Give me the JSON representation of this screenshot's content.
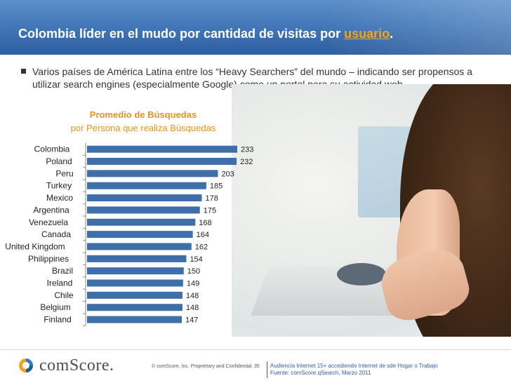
{
  "slide": {
    "title_main": "Colombia líder en el mudo por cantidad de visitas por ",
    "title_highlight": "usuario",
    "title_end": ".",
    "bullet": "Varios países de América Latina entre los “Heavy Searchers” del mundo – indicando ser propensos a utilizar search engines (especialmente Google) como un portal para su actividad web"
  },
  "colors": {
    "header": "#3f74b5",
    "accent": "#f5a31b",
    "bar": "#3e6fa8",
    "chart_title": "#e8921c"
  },
  "chart_data": {
    "type": "bar",
    "orientation": "horizontal",
    "title": "Promedio de Búsquedas",
    "subtitle": "por Persona que realiza Búsquedas",
    "categories": [
      "Colombia",
      "Poland",
      "Peru",
      "Turkey",
      "Mexico",
      "Argentina",
      "Venezuela",
      "Canada",
      "United Kingdom",
      "Philippines",
      "Brazil",
      "Ireland",
      "Chile",
      "Belgium",
      "Finland"
    ],
    "values": [
      233,
      232,
      203,
      185,
      178,
      175,
      168,
      164,
      162,
      154,
      150,
      149,
      148,
      148,
      147
    ],
    "xlim": [
      0,
      233
    ]
  },
  "footer": {
    "logo": "comScore.",
    "copyright": "© comScore, Inc.  Proprietary and Confidential.",
    "page_number": "35",
    "source_line1": "Audiencia Internet 15+ accediendo Internet de sde Hogar  o Trabajo",
    "source_line2": "Fuente:  comScore qSearch, Marzo 2011"
  }
}
